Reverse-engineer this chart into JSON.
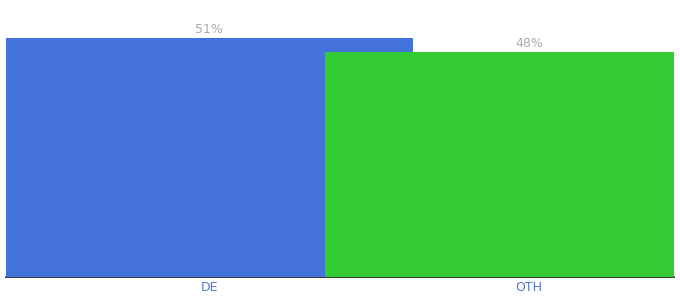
{
  "categories": [
    "DE",
    "OTH"
  ],
  "values": [
    51,
    48
  ],
  "bar_colors": [
    "#4472db",
    "#33cc33"
  ],
  "bar_labels": [
    "51%",
    "48%"
  ],
  "label_color": "#aaaaaa",
  "label_fontsize": 9,
  "tick_color": "#5577cc",
  "tick_fontsize": 9,
  "background_color": "#ffffff",
  "ylim": [
    0,
    58
  ],
  "bar_width": 0.7,
  "x_positions": [
    0.3,
    0.85
  ],
  "xlim": [
    -0.05,
    1.1
  ],
  "figsize": [
    6.8,
    3.0
  ],
  "dpi": 100
}
